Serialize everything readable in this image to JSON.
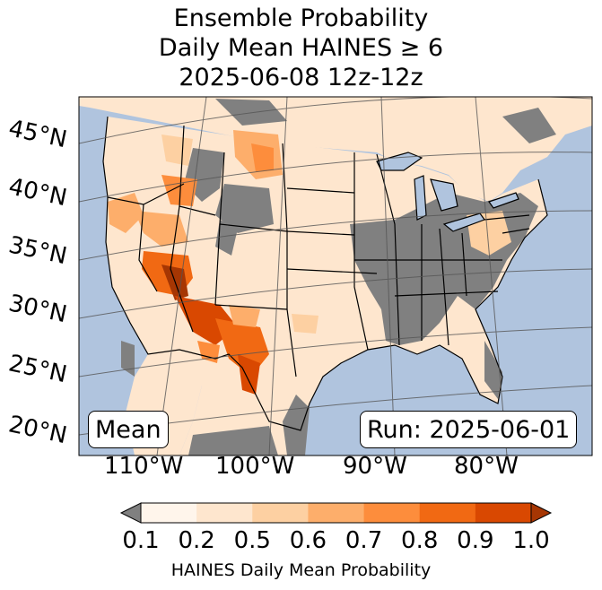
{
  "title": {
    "line1": "Ensemble Probability",
    "line2": "Daily Mean HAINES ≥ 6",
    "line3": "2025-06-08 12z-12z"
  },
  "lat_labels": [
    "45°N",
    "40°N",
    "35°N",
    "30°N",
    "25°N",
    "20°N"
  ],
  "lon_labels": [
    "110°W",
    "100°W",
    "90°W",
    "80°W"
  ],
  "stat_label": "Mean",
  "run_label": "Run: 2025-06-01",
  "colorbar": {
    "ticks": [
      "0.1",
      "0.2",
      "0.5",
      "0.6",
      "0.7",
      "0.8",
      "0.9",
      "1.0"
    ],
    "label": "HAINES Daily Mean Probability",
    "colors": [
      "#fff5eb",
      "#fee6ce",
      "#fdd0a2",
      "#fdae6b",
      "#fd8d3c",
      "#f16913",
      "#d94801",
      "#a63603"
    ],
    "under_color": "#808080",
    "over_color": "#7f2704"
  },
  "colors": {
    "ocean": "#b0c4de",
    "no_data_gray": "#808080",
    "land_low": "#fee6ce"
  }
}
